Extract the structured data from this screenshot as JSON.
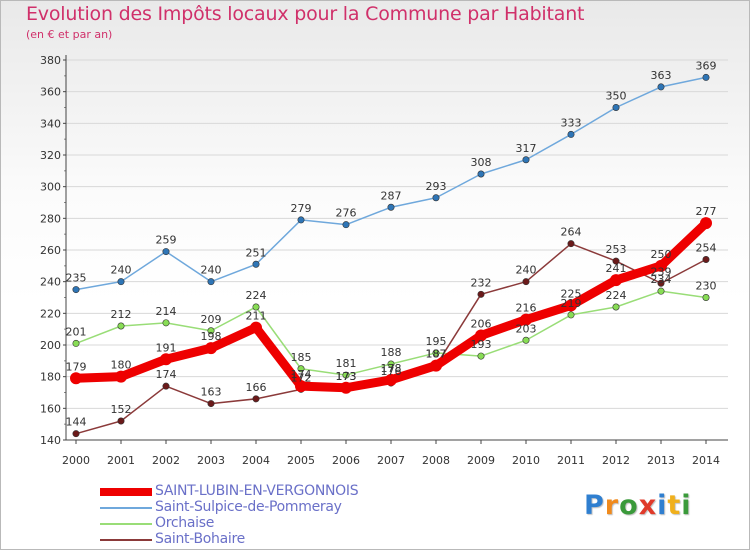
{
  "chart_data": {
    "type": "line",
    "title": "Evolution des Impôts locaux pour la Commune par Habitant",
    "subtitle": "(en € et par an)",
    "xlabel": "",
    "ylabel": "",
    "ylim": [
      140,
      380
    ],
    "yticks": [
      140,
      160,
      180,
      200,
      220,
      240,
      260,
      280,
      300,
      320,
      340,
      360,
      380
    ],
    "grid": true,
    "legend_position": "bottom-left",
    "x": [
      "2000",
      "2001",
      "2002",
      "2003",
      "2004",
      "2005",
      "2006",
      "2007",
      "2008",
      "2009",
      "2010",
      "2011",
      "2012",
      "2013",
      "2014"
    ],
    "series": [
      {
        "name": "Saint-Sulpice-de-Pommeray",
        "color": "#6fa8dc",
        "marker_color": "#2e75b6",
        "values": [
          235,
          240,
          259,
          240,
          251,
          279,
          276,
          287,
          293,
          308,
          317,
          333,
          350,
          363,
          369
        ]
      },
      {
        "name": "Orchaise",
        "color": "#99dd77",
        "marker_color": "#88dd55",
        "values": [
          201,
          212,
          214,
          209,
          224,
          185,
          181,
          188,
          195,
          193,
          203,
          219,
          224,
          234,
          230
        ]
      },
      {
        "name": "Saint-Bohaire",
        "color": "#8b3a3a",
        "marker_color": "#6b1a1a",
        "values": [
          144,
          152,
          174,
          163,
          166,
          172,
          173,
          176,
          187,
          232,
          240,
          264,
          253,
          239,
          254
        ]
      },
      {
        "name": "SAINT-LUBIN-EN-VERGONNOIS",
        "color": "#ee0000",
        "marker_color": "#ee0000",
        "values": [
          179,
          180,
          191,
          198,
          211,
          174,
          173,
          178,
          187,
          206,
          216,
          225,
          241,
          250,
          277
        ]
      }
    ],
    "legend": [
      {
        "name": "SAINT-LUBIN-EN-VERGONNOIS",
        "color": "#ee0000"
      },
      {
        "name": "Saint-Sulpice-de-Pommeray",
        "color": "#6fa8dc"
      },
      {
        "name": "Orchaise",
        "color": "#99dd77"
      },
      {
        "name": "Saint-Bohaire",
        "color": "#8b3a3a"
      }
    ]
  },
  "logo": {
    "text": "Proxiti",
    "letter_colors": [
      "#2f7fd0",
      "#f08a1c",
      "#3a9a3a",
      "#e03a2a",
      "#2f7fd0",
      "#f0b01c",
      "#3a9a3a"
    ]
  }
}
